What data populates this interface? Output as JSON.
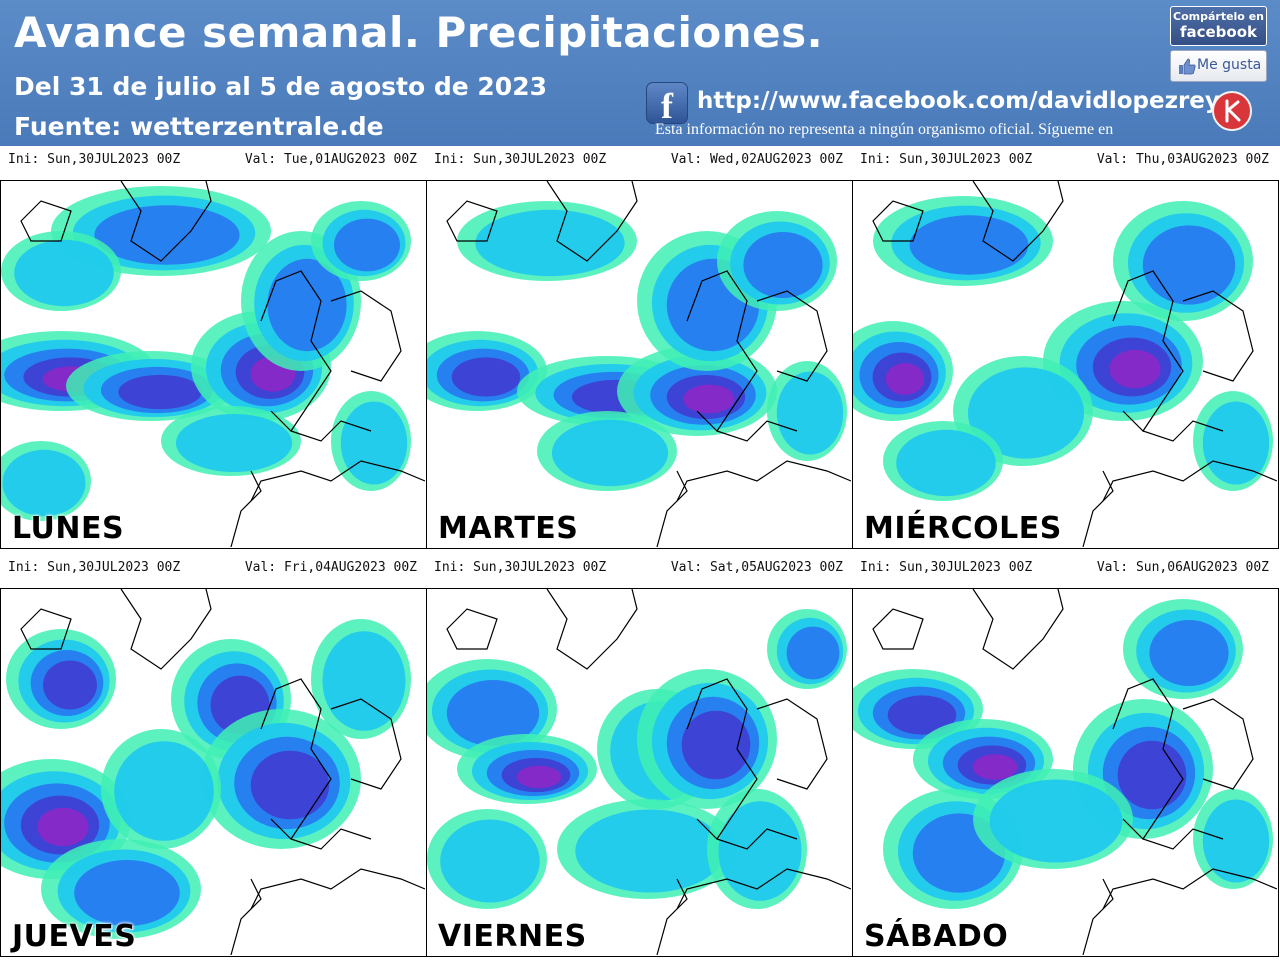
{
  "header": {
    "title": "Avance semanal. Precipitaciones.",
    "date_range": "Del 31 de julio al 5 de agosto de 2023",
    "source": "Fuente: wetterzentrale.de",
    "facebook_url": "http://www.facebook.com/davidlopezrey",
    "disclaimer": "Esta información no representa a ningún organismo oficial. Sígueme en",
    "share_label": "Compártelo en",
    "share_brand": "facebook",
    "like_label": "Me gusta",
    "fb_icon": "f",
    "header_color": "#4a7ab9"
  },
  "panels": [
    {
      "ini": "Ini: Sun,30JUL2023 00Z",
      "val": "Val: Tue,01AUG2023 00Z",
      "day": "LUNES"
    },
    {
      "ini": "Ini: Sun,30JUL2023 00Z",
      "val": "Val: Wed,02AUG2023 00Z",
      "day": "MARTES"
    },
    {
      "ini": "Ini: Sun,30JUL2023 00Z",
      "val": "Val: Thu,03AUG2023 00Z",
      "day": "MIÉRCOLES"
    },
    {
      "ini": "Ini: Sun,30JUL2023 00Z",
      "val": "Val: Fri,04AUG2023 00Z",
      "day": "JUEVES"
    },
    {
      "ini": "Ini: Sun,30JUL2023 00Z",
      "val": "Val: Sat,05AUG2023 00Z",
      "day": "VIERNES"
    },
    {
      "ini": "Ini: Sun,30JUL2023 00Z",
      "val": "Val: Sun,06AUG2023 00Z",
      "day": "SÁBADO"
    }
  ],
  "legend_colors": {
    "light": "#3ff0b4",
    "cyan": "#1ec8f0",
    "blue": "#2878f0",
    "deep": "#3f3cd2",
    "purple": "#8c28c8",
    "magenta": "#e650e6"
  }
}
